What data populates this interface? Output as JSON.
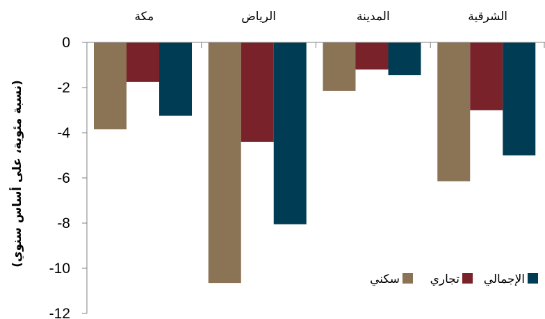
{
  "chart_data": {
    "type": "bar",
    "title": "",
    "xlabel": "",
    "ylabel": "(نسبة مئوية، على أساس سنوي)",
    "ylim": [
      -12,
      0
    ],
    "yticks": [
      0,
      -2,
      -4,
      -6,
      -8,
      -10,
      -12
    ],
    "ytick_labels": [
      "0",
      "-2",
      "-4",
      "-6",
      "-8",
      "-10",
      "-12"
    ],
    "categories": [
      "مكة",
      "الرياض",
      "المدينة",
      "الشرقية"
    ],
    "series": [
      {
        "name": "سكني",
        "color": "#8B7355",
        "values": [
          -3.85,
          -10.65,
          -2.15,
          -6.15
        ]
      },
      {
        "name": "تجاري",
        "color": "#7A2229",
        "values": [
          -1.75,
          -4.4,
          -1.2,
          -3.0
        ]
      },
      {
        "name": "الإجمالي",
        "color": "#003D55",
        "values": [
          -3.25,
          -8.05,
          -1.45,
          -5.0
        ]
      }
    ],
    "legend": {
      "position": "bottom-right"
    },
    "grid": false
  }
}
